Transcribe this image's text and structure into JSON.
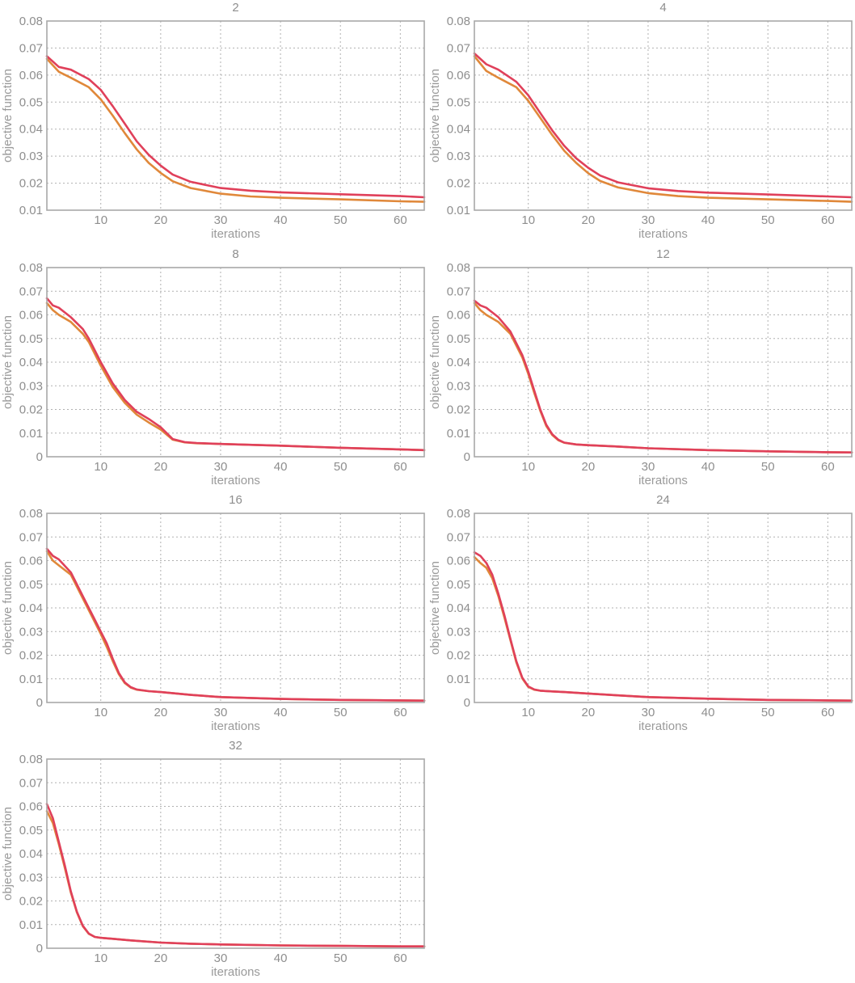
{
  "chart_data": [
    {
      "type": "line",
      "title": "2",
      "xlabel": "iterations",
      "ylabel": "objective function",
      "xlim": [
        1,
        64
      ],
      "ylim": [
        0.01,
        0.08
      ],
      "xticks": [
        "10",
        "20",
        "30",
        "40",
        "50",
        "60"
      ],
      "yticks": [
        "0.01",
        "0.02",
        "0.03",
        "0.04",
        "0.05",
        "0.06",
        "0.07",
        "0.08"
      ],
      "grid": true,
      "colors": [
        "#e0405a",
        "#e0883a"
      ],
      "x": [
        1,
        3,
        5,
        8,
        10,
        12,
        14,
        16,
        18,
        20,
        22,
        25,
        30,
        35,
        40,
        50,
        60,
        64
      ],
      "series": [
        {
          "values": [
            0.067,
            0.063,
            0.062,
            0.0585,
            0.0545,
            0.0485,
            0.042,
            0.0355,
            0.0305,
            0.0265,
            0.0232,
            0.0205,
            0.0182,
            0.0172,
            0.0166,
            0.0159,
            0.0152,
            0.0148
          ]
        },
        {
          "values": [
            0.066,
            0.0612,
            0.059,
            0.0555,
            0.051,
            0.045,
            0.0385,
            0.0325,
            0.0275,
            0.0238,
            0.0207,
            0.0182,
            0.0161,
            0.0151,
            0.0146,
            0.014,
            0.0133,
            0.0131
          ]
        }
      ]
    },
    {
      "type": "line",
      "title": "4",
      "xlabel": "iterations",
      "ylabel": "objective function",
      "xlim": [
        1,
        64
      ],
      "ylim": [
        0.01,
        0.08
      ],
      "xticks": [
        "10",
        "20",
        "30",
        "40",
        "50",
        "60"
      ],
      "yticks": [
        "0.01",
        "0.02",
        "0.03",
        "0.04",
        "0.05",
        "0.06",
        "0.07",
        "0.08"
      ],
      "grid": true,
      "colors": [
        "#e0405a",
        "#e0883a"
      ],
      "x": [
        1,
        3,
        5,
        8,
        10,
        12,
        14,
        16,
        18,
        20,
        22,
        25,
        30,
        35,
        40,
        50,
        60,
        64
      ],
      "series": [
        {
          "values": [
            0.068,
            0.064,
            0.062,
            0.0575,
            0.0525,
            0.046,
            0.0395,
            0.0338,
            0.0292,
            0.0257,
            0.0228,
            0.0203,
            0.0181,
            0.0171,
            0.0165,
            0.0158,
            0.0151,
            0.0148
          ]
        },
        {
          "values": [
            0.067,
            0.0615,
            0.059,
            0.0555,
            0.0505,
            0.0442,
            0.0378,
            0.032,
            0.0275,
            0.0237,
            0.0208,
            0.0184,
            0.0163,
            0.0152,
            0.0146,
            0.014,
            0.0134,
            0.0131
          ]
        }
      ]
    },
    {
      "type": "line",
      "title": "8",
      "xlabel": "iterations",
      "ylabel": "objective function",
      "xlim": [
        1,
        64
      ],
      "ylim": [
        0,
        0.08
      ],
      "xticks": [
        "10",
        "20",
        "30",
        "40",
        "50",
        "60"
      ],
      "yticks": [
        "0",
        "0.01",
        "0.02",
        "0.03",
        "0.04",
        "0.05",
        "0.06",
        "0.07",
        "0.08"
      ],
      "grid": true,
      "colors": [
        "#e0405a",
        "#e0883a"
      ],
      "x": [
        1,
        2,
        3,
        5,
        7,
        8,
        10,
        12,
        14,
        16,
        18,
        20,
        22,
        24,
        26,
        30,
        40,
        50,
        60,
        64
      ],
      "series": [
        {
          "values": [
            0.067,
            0.064,
            0.063,
            0.059,
            0.054,
            0.05,
            0.04,
            0.031,
            0.024,
            0.019,
            0.016,
            0.0125,
            0.0075,
            0.0062,
            0.0058,
            0.0054,
            0.0047,
            0.0038,
            0.0031,
            0.0028
          ]
        },
        {
          "values": [
            0.065,
            0.062,
            0.06,
            0.057,
            0.052,
            0.0485,
            0.0385,
            0.0295,
            0.0228,
            0.0178,
            0.0145,
            0.0115,
            0.0072,
            0.0061,
            0.0057,
            0.0054,
            0.0047,
            0.0038,
            0.0031,
            0.0028
          ]
        }
      ]
    },
    {
      "type": "line",
      "title": "12",
      "xlabel": "iterations",
      "ylabel": "objective function",
      "xlim": [
        1,
        64
      ],
      "ylim": [
        0,
        0.08
      ],
      "xticks": [
        "10",
        "20",
        "30",
        "40",
        "50",
        "60"
      ],
      "yticks": [
        "0",
        "0.01",
        "0.02",
        "0.03",
        "0.04",
        "0.05",
        "0.06",
        "0.07",
        "0.08"
      ],
      "grid": true,
      "colors": [
        "#e0405a",
        "#e0883a"
      ],
      "x": [
        1,
        2,
        3,
        5,
        7,
        9,
        10,
        11,
        12,
        13,
        14,
        15,
        16,
        18,
        20,
        25,
        30,
        40,
        50,
        60,
        64
      ],
      "series": [
        {
          "values": [
            0.066,
            0.064,
            0.063,
            0.059,
            0.053,
            0.043,
            0.036,
            0.028,
            0.02,
            0.0135,
            0.0095,
            0.0072,
            0.006,
            0.0052,
            0.0049,
            0.0043,
            0.0036,
            0.0028,
            0.0023,
            0.0019,
            0.0018
          ]
        },
        {
          "values": [
            0.065,
            0.062,
            0.06,
            0.057,
            0.052,
            0.042,
            0.035,
            0.027,
            0.0195,
            0.013,
            0.0092,
            0.007,
            0.0059,
            0.0052,
            0.0049,
            0.0043,
            0.0036,
            0.0028,
            0.0023,
            0.0019,
            0.0018
          ]
        }
      ]
    },
    {
      "type": "line",
      "title": "16",
      "xlabel": "iterations",
      "ylabel": "objective function",
      "xlim": [
        1,
        64
      ],
      "ylim": [
        0,
        0.08
      ],
      "xticks": [
        "10",
        "20",
        "30",
        "40",
        "50",
        "60"
      ],
      "yticks": [
        "0",
        "0.01",
        "0.02",
        "0.03",
        "0.04",
        "0.05",
        "0.06",
        "0.07",
        "0.08"
      ],
      "grid": true,
      "colors": [
        "#e0405a",
        "#e0883a"
      ],
      "x": [
        1,
        2,
        3,
        5,
        7,
        9,
        10,
        11,
        12,
        13,
        14,
        15,
        16,
        18,
        20,
        25,
        30,
        40,
        50,
        60,
        64
      ],
      "series": [
        {
          "values": [
            0.065,
            0.062,
            0.0605,
            0.055,
            0.045,
            0.035,
            0.03,
            0.025,
            0.0185,
            0.0125,
            0.0085,
            0.0065,
            0.0055,
            0.0048,
            0.0044,
            0.0032,
            0.0023,
            0.0015,
            0.0011,
            0.0009,
            0.0008
          ]
        },
        {
          "values": [
            0.064,
            0.06,
            0.058,
            0.054,
            0.044,
            0.034,
            0.029,
            0.0235,
            0.0175,
            0.012,
            0.0082,
            0.0063,
            0.0054,
            0.0048,
            0.0044,
            0.0032,
            0.0023,
            0.0015,
            0.0011,
            0.0009,
            0.0008
          ]
        }
      ]
    },
    {
      "type": "line",
      "title": "24",
      "xlabel": "iterations",
      "ylabel": "objective function",
      "xlim": [
        1,
        64
      ],
      "ylim": [
        0,
        0.08
      ],
      "xticks": [
        "10",
        "20",
        "30",
        "40",
        "50",
        "60"
      ],
      "yticks": [
        "0",
        "0.01",
        "0.02",
        "0.03",
        "0.04",
        "0.05",
        "0.06",
        "0.07",
        "0.08"
      ],
      "grid": true,
      "colors": [
        "#e0405a",
        "#e0883a"
      ],
      "x": [
        1,
        2,
        3,
        4,
        5,
        6,
        7,
        8,
        9,
        10,
        11,
        12,
        14,
        16,
        20,
        25,
        30,
        40,
        50,
        60,
        64
      ],
      "series": [
        {
          "values": [
            0.0635,
            0.062,
            0.059,
            0.054,
            0.046,
            0.037,
            0.027,
            0.0175,
            0.0105,
            0.0068,
            0.0055,
            0.005,
            0.0047,
            0.0044,
            0.0038,
            0.003,
            0.0023,
            0.0016,
            0.0011,
            0.0009,
            0.0008
          ]
        },
        {
          "values": [
            0.0615,
            0.059,
            0.057,
            0.0525,
            0.045,
            0.036,
            0.0265,
            0.017,
            0.0102,
            0.0066,
            0.0054,
            0.005,
            0.0047,
            0.0044,
            0.0038,
            0.003,
            0.0023,
            0.0016,
            0.0011,
            0.0009,
            0.0008
          ]
        }
      ]
    },
    {
      "type": "line",
      "title": "32",
      "xlabel": "iterations",
      "ylabel": "objective function",
      "xlim": [
        1,
        64
      ],
      "ylim": [
        0,
        0.08
      ],
      "xticks": [
        "10",
        "20",
        "30",
        "40",
        "50",
        "60"
      ],
      "yticks": [
        "0",
        "0.01",
        "0.02",
        "0.03",
        "0.04",
        "0.05",
        "0.06",
        "0.07",
        "0.08"
      ],
      "grid": true,
      "colors": [
        "#e0405a",
        "#e0883a"
      ],
      "x": [
        1,
        2,
        3,
        4,
        5,
        6,
        7,
        8,
        9,
        10,
        12,
        15,
        20,
        25,
        30,
        40,
        50,
        60,
        64
      ],
      "series": [
        {
          "values": [
            0.061,
            0.055,
            0.045,
            0.035,
            0.024,
            0.0155,
            0.0095,
            0.0062,
            0.0048,
            0.0044,
            0.004,
            0.0033,
            0.0024,
            0.0019,
            0.0016,
            0.0012,
            0.001,
            0.0008,
            0.0008
          ]
        },
        {
          "values": [
            0.058,
            0.053,
            0.044,
            0.034,
            0.0235,
            0.0152,
            0.0093,
            0.0061,
            0.0048,
            0.0044,
            0.004,
            0.0033,
            0.0024,
            0.0019,
            0.0016,
            0.0012,
            0.001,
            0.0008,
            0.0008
          ]
        }
      ]
    }
  ]
}
